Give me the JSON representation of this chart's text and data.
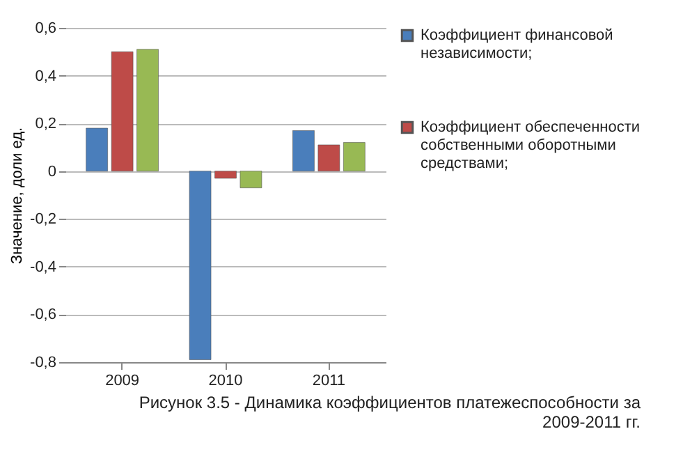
{
  "chart_data": {
    "type": "bar",
    "title": "Рисунок 3.5 - Динамика коэффициентов платежеспособности за 2009-2011 гг.",
    "ylabel": "Значение, доли ед.",
    "categories": [
      "2009",
      "2010",
      "2011"
    ],
    "series": [
      {
        "name": "Коэффициент финансовой независимости;",
        "color": "#4a7ebb",
        "values": [
          0.18,
          -0.79,
          0.17
        ]
      },
      {
        "name": "Коэффициент обеспеченности собственными оборотными средствами;",
        "color": "#be4b48",
        "values": [
          0.5,
          -0.03,
          0.11
        ]
      },
      {
        "color": "#98b954",
        "values": [
          0.51,
          -0.07,
          0.12
        ]
      }
    ],
    "ylim": [
      -0.8,
      0.6
    ],
    "yticks": [
      {
        "value": -0.8,
        "label": "-0,8"
      },
      {
        "value": -0.6,
        "label": "-0,6"
      },
      {
        "value": -0.4,
        "label": "-0,4"
      },
      {
        "value": -0.2,
        "label": "-0,2"
      },
      0,
      {
        "value": 0.2,
        "label": "0,2"
      },
      {
        "value": 0.4,
        "label": "0,4"
      },
      {
        "value": 0.6,
        "label": "0,6"
      }
    ],
    "grid": "y",
    "legend": "right"
  }
}
